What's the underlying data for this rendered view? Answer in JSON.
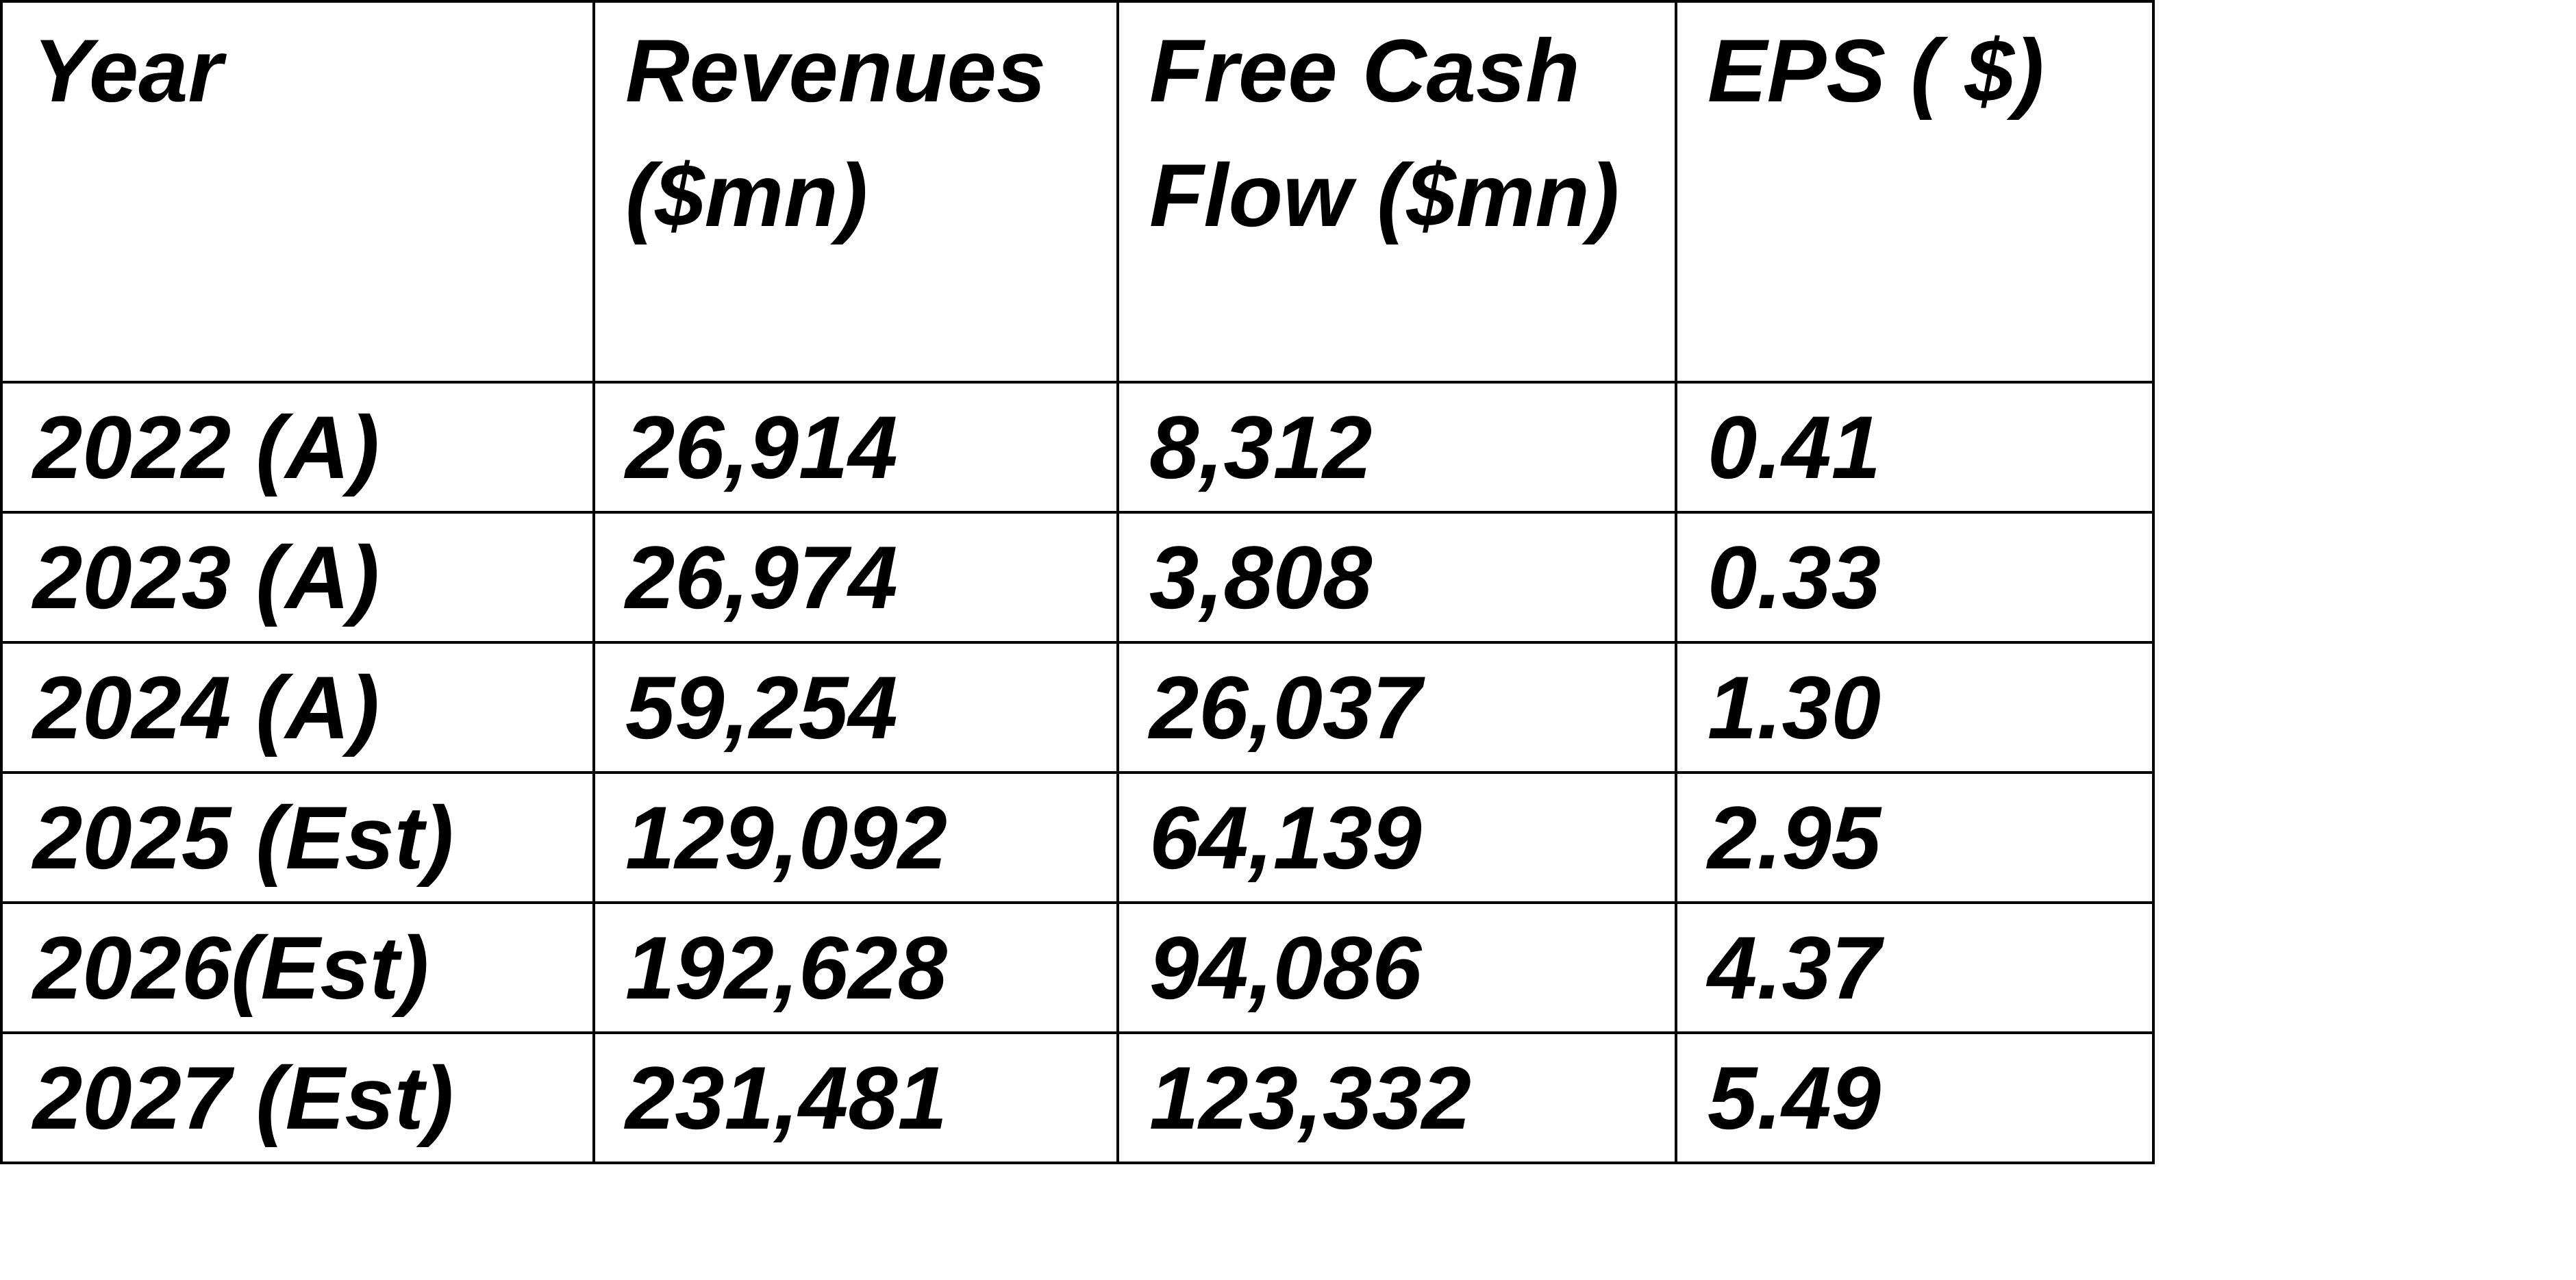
{
  "table": {
    "headers": [
      "Year",
      "Revenues ($mn)",
      "Free Cash Flow ($mn)",
      "EPS ( $)"
    ],
    "rows": [
      [
        "2022 (A)",
        "26,914",
        "8,312",
        "0.41"
      ],
      [
        "2023 (A)",
        "26,974",
        "3,808",
        "0.33"
      ],
      [
        "2024 (A)",
        "59,254",
        "26,037",
        "1.30"
      ],
      [
        "2025 (Est)",
        "129,092",
        "64,139",
        "2.95"
      ],
      [
        "2026(Est)",
        "192,628",
        "94,086",
        "4.37"
      ],
      [
        "2027 (Est)",
        "231,481",
        "123,332",
        "5.49"
      ]
    ]
  }
}
